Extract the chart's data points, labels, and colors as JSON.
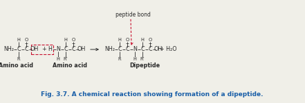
{
  "bg_color": "#f0efe8",
  "title_text": "Fig. 3.7. A chemical reaction showing formation of a dipeptide.",
  "title_color": "#1a5fa8",
  "title_fontsize": 6.5,
  "label1": "Amino acid",
  "label2": "Amino acid",
  "label3": "Dipeptide",
  "peptide_bond_label": "peptide bond",
  "arrow_color": "#c8102e",
  "text_color": "#2a2a2a",
  "dashed_box_color": "#c8102e"
}
